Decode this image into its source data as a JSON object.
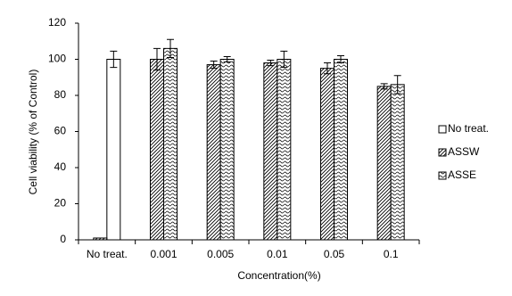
{
  "chart_data": {
    "type": "bar",
    "categories": [
      "No treat.",
      "0.001",
      "0.005",
      "0.01",
      "0.05",
      "0.1"
    ],
    "series": [
      {
        "name": "No treat.",
        "color": "#000000",
        "hatch": "none",
        "values": [
          100,
          null,
          null,
          null,
          null,
          null
        ],
        "errors": [
          4.5,
          null,
          null,
          null,
          null,
          null
        ]
      },
      {
        "name": "ASSW",
        "color": "#000000",
        "hatch": "diagonal",
        "values": [
          1,
          100,
          97,
          98,
          95,
          85
        ],
        "errors": [
          null,
          6,
          2,
          1.5,
          3,
          1.5
        ]
      },
      {
        "name": "ASSE",
        "color": "#000000",
        "hatch": "wave",
        "values": [
          null,
          106,
          100,
          100,
          100,
          86
        ],
        "errors": [
          null,
          5,
          1.5,
          4.5,
          2,
          5
        ]
      }
    ],
    "xlabel": "Concentration(%)",
    "ylabel": "Cell  viability  (% of Control)",
    "ylim": [
      0,
      120
    ],
    "yticks": [
      0,
      20,
      40,
      60,
      80,
      100,
      120
    ],
    "grid": false,
    "legend": "right"
  }
}
